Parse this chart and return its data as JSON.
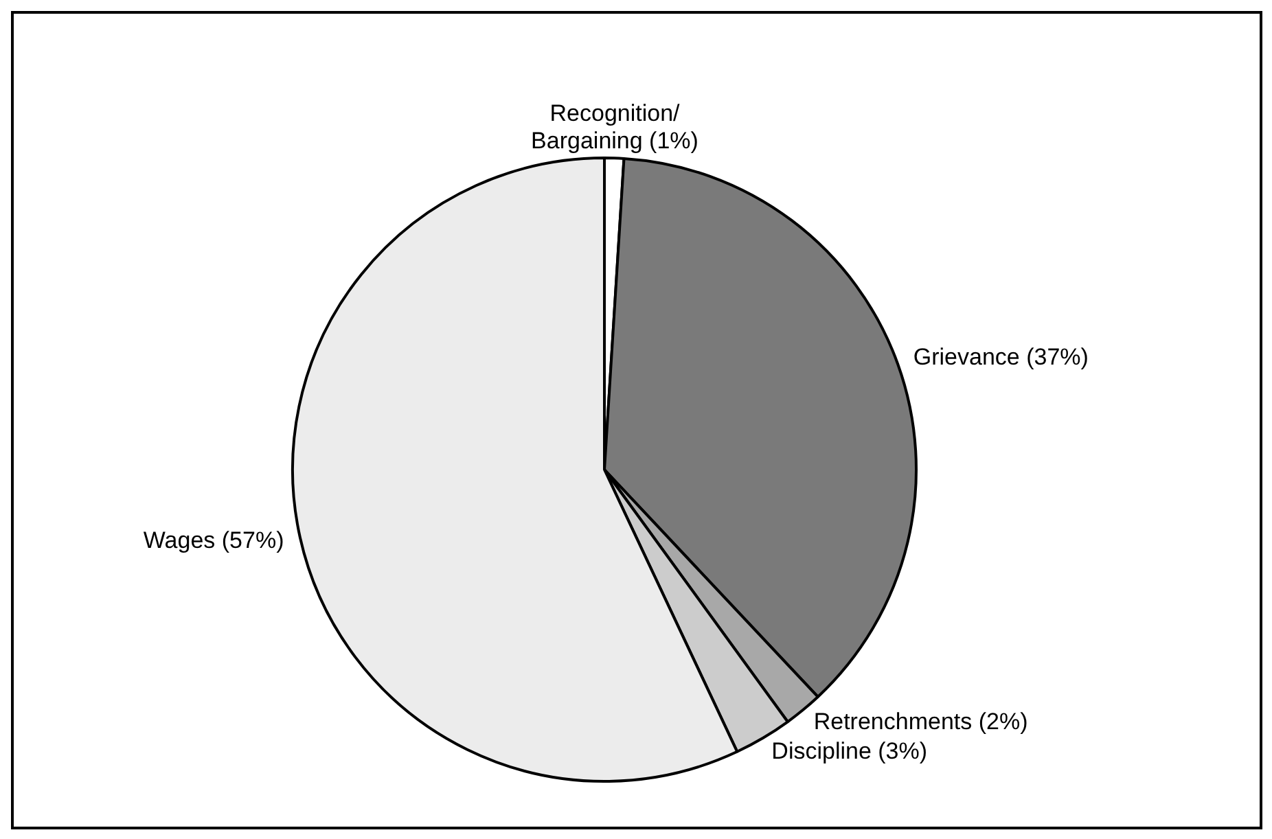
{
  "chart_data": {
    "type": "pie",
    "categories": [
      "Recognition/\nBargaining",
      "Grievance",
      "Retrenchments",
      "Discipline",
      "Wages"
    ],
    "values": [
      1,
      37,
      2,
      3,
      57
    ],
    "value_labels": [
      "(1%)",
      "(37%)",
      "(2%)",
      "(3%)",
      "(57%)"
    ],
    "colors": [
      "#ffffff",
      "#7a7a7a",
      "#a8a8a8",
      "#cccccc",
      "#ececec"
    ],
    "legend": false
  }
}
